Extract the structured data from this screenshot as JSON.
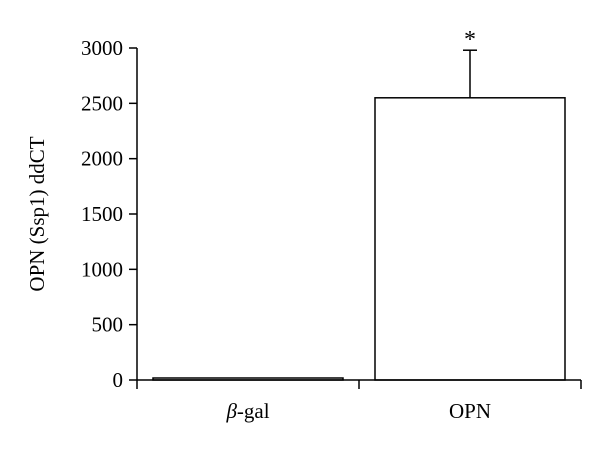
{
  "chart_data": {
    "type": "bar",
    "categories": [
      "β-gal",
      "OPN"
    ],
    "values": [
      15,
      2550
    ],
    "errors": [
      0,
      430
    ],
    "annotations": [
      "",
      "*"
    ],
    "ylabel": "OPN (Ssp1) ddCT",
    "xlabel": "",
    "ylim": [
      0,
      3000
    ],
    "yticks": [
      0,
      500,
      1000,
      1500,
      2000,
      2500,
      3000
    ],
    "grid": false,
    "bar_fill": "#ffffff",
    "bar_stroke": "#000000"
  }
}
